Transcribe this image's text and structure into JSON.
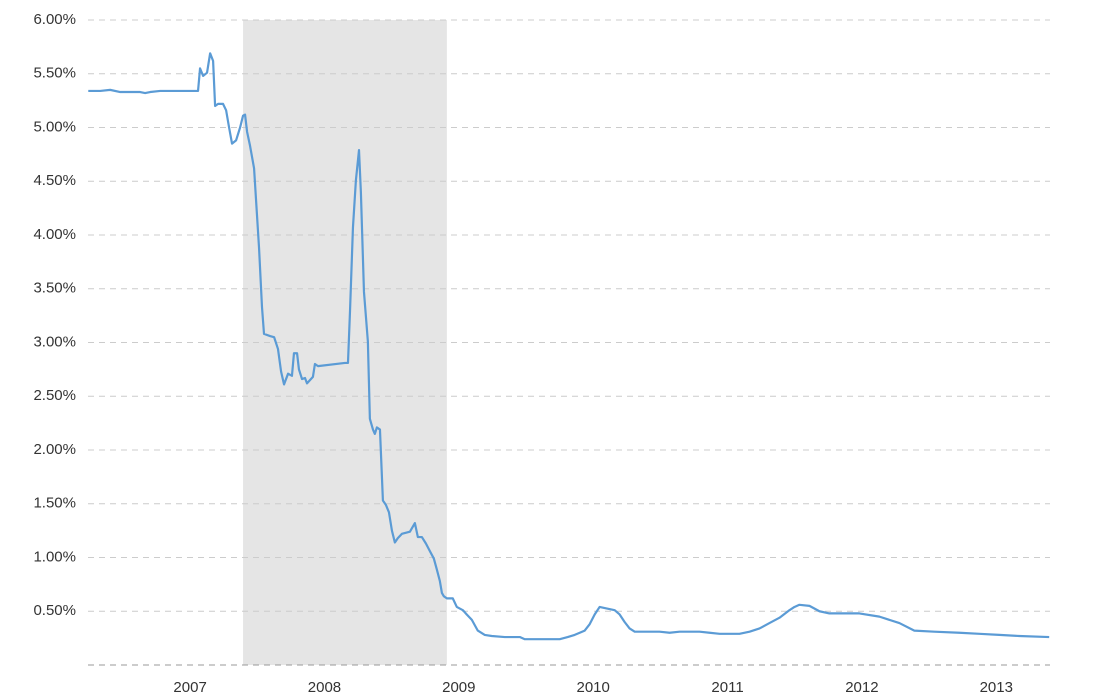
{
  "chart_data": {
    "type": "line",
    "line_color": "#5b9bd5",
    "shade_color": "#e5e5e5",
    "shaded_range": [
      2007.394,
      2008.911
    ],
    "grid": true,
    "xlim": [
      2006.24,
      2013.4
    ],
    "xticks": [
      2007,
      2008,
      2009,
      2010,
      2011,
      2012,
      2013
    ],
    "ylim": [
      0,
      6
    ],
    "yticks": [
      {
        "value": 0.5,
        "label": "0.50%"
      },
      {
        "value": 1,
        "label": "1.00%"
      },
      {
        "value": 1.5,
        "label": "1.50%"
      },
      {
        "value": 2,
        "label": "2.00%"
      },
      {
        "value": 2.5,
        "label": "2.50%"
      },
      {
        "value": 3,
        "label": "3.00%"
      },
      {
        "value": 3.5,
        "label": "3.50%"
      },
      {
        "value": 4,
        "label": "4.00%"
      },
      {
        "value": 4.5,
        "label": "4.50%"
      },
      {
        "value": 5,
        "label": "5.00%"
      },
      {
        "value": 5.5,
        "label": "5.50%"
      },
      {
        "value": 6,
        "label": "6.00%"
      }
    ],
    "x": [
      2006.242,
      2006.331,
      2006.405,
      2006.48,
      2006.628,
      2006.665,
      2006.703,
      2006.777,
      2007.059,
      2007.074,
      2007.097,
      2007.126,
      2007.149,
      2007.171,
      2007.186,
      2007.208,
      2007.245,
      2007.268,
      2007.29,
      2007.312,
      2007.342,
      2007.372,
      2007.394,
      2007.409,
      2007.424,
      2007.446,
      2007.476,
      2007.491,
      2007.513,
      2007.535,
      2007.55,
      2007.595,
      2007.625,
      2007.654,
      2007.677,
      2007.699,
      2007.729,
      2007.758,
      2007.773,
      2007.796,
      2007.81,
      2007.833,
      2007.855,
      2007.87,
      2007.914,
      2007.929,
      2007.952,
      2008.152,
      2008.175,
      2008.19,
      2008.212,
      2008.234,
      2008.257,
      2008.271,
      2008.294,
      2008.323,
      2008.338,
      2008.361,
      2008.375,
      2008.39,
      2008.413,
      2008.435,
      2008.457,
      2008.48,
      2008.502,
      2008.524,
      2008.546,
      2008.576,
      2008.636,
      2008.673,
      2008.695,
      2008.725,
      2008.755,
      2008.784,
      2008.814,
      2008.836,
      2008.859,
      2008.874,
      2008.888,
      2008.911,
      2008.955,
      2008.985,
      2009.03,
      2009.059,
      2009.097,
      2009.141,
      2009.193,
      2009.245,
      2009.342,
      2009.454,
      2009.491,
      2009.602,
      2009.751,
      2009.81,
      2009.862,
      2009.9,
      2009.937,
      2009.974,
      2010.011,
      2010.048,
      2010.086,
      2010.16,
      2010.197,
      2010.234,
      2010.271,
      2010.309,
      2010.494,
      2010.569,
      2010.643,
      2010.717,
      2010.792,
      2010.866,
      2010.941,
      2011.089,
      2011.164,
      2011.238,
      2011.312,
      2011.387,
      2011.461,
      2011.498,
      2011.535,
      2011.61,
      2011.684,
      2011.758,
      2011.981,
      2012.13,
      2012.279,
      2012.39,
      2012.539,
      2012.725,
      2012.874,
      2013.022,
      2013.171,
      2013.394
    ],
    "values": [
      5.34,
      5.34,
      5.35,
      5.33,
      5.33,
      5.32,
      5.33,
      5.34,
      5.34,
      5.55,
      5.48,
      5.51,
      5.69,
      5.62,
      5.2,
      5.22,
      5.22,
      5.16,
      5.0,
      4.85,
      4.88,
      5.0,
      5.11,
      5.12,
      4.96,
      4.83,
      4.62,
      4.32,
      3.88,
      3.33,
      3.08,
      3.06,
      3.05,
      2.94,
      2.73,
      2.61,
      2.71,
      2.69,
      2.9,
      2.9,
      2.75,
      2.66,
      2.67,
      2.62,
      2.68,
      2.8,
      2.78,
      2.81,
      2.81,
      3.29,
      4.07,
      4.51,
      4.79,
      4.4,
      3.47,
      3.01,
      2.29,
      2.19,
      2.15,
      2.21,
      2.19,
      1.53,
      1.49,
      1.42,
      1.25,
      1.14,
      1.18,
      1.22,
      1.24,
      1.32,
      1.19,
      1.19,
      1.13,
      1.06,
      0.99,
      0.89,
      0.78,
      0.67,
      0.64,
      0.62,
      0.62,
      0.54,
      0.51,
      0.47,
      0.42,
      0.32,
      0.28,
      0.27,
      0.26,
      0.26,
      0.24,
      0.24,
      0.24,
      0.26,
      0.28,
      0.3,
      0.32,
      0.38,
      0.47,
      0.54,
      0.53,
      0.51,
      0.47,
      0.4,
      0.34,
      0.31,
      0.31,
      0.3,
      0.31,
      0.31,
      0.31,
      0.3,
      0.29,
      0.29,
      0.31,
      0.34,
      0.39,
      0.44,
      0.51,
      0.54,
      0.56,
      0.55,
      0.5,
      0.48,
      0.48,
      0.45,
      0.39,
      0.32,
      0.31,
      0.3,
      0.29,
      0.28,
      0.27,
      0.26
    ]
  }
}
